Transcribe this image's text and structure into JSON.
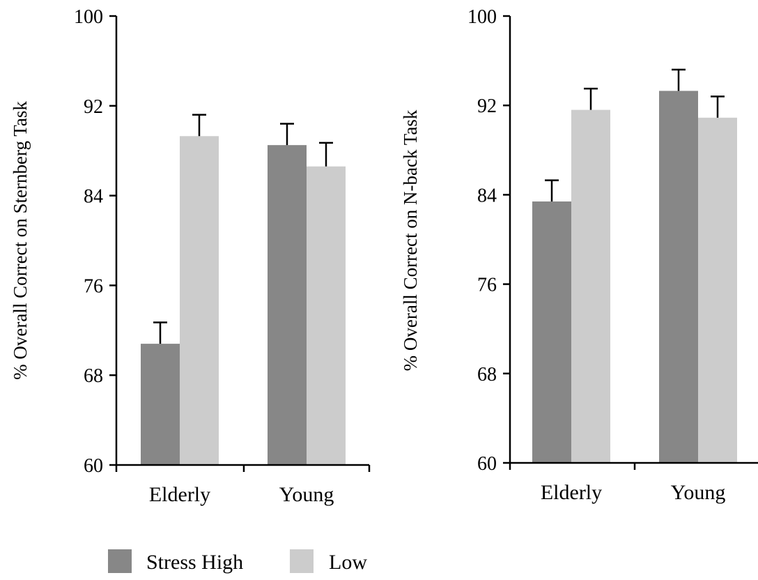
{
  "chart_data": [
    {
      "type": "bar",
      "ylabel": "% Overall Correct on Sternberg Task",
      "xlabel": "",
      "categories": [
        "Elderly",
        "Young"
      ],
      "series": [
        {
          "name": "Stress High",
          "values": [
            70.8,
            88.5
          ],
          "errors": [
            1.9,
            1.9
          ]
        },
        {
          "name": "Low",
          "values": [
            89.3,
            86.6
          ],
          "errors": [
            1.9,
            2.1
          ]
        }
      ],
      "ylim": [
        60,
        100
      ],
      "yticks": [
        "60",
        "68",
        "76",
        "84",
        "92",
        "100"
      ]
    },
    {
      "type": "bar",
      "ylabel": "% Overall Correct on N-back Task",
      "xlabel": "",
      "categories": [
        "Elderly",
        "Young"
      ],
      "series": [
        {
          "name": "Stress High",
          "values": [
            83.4,
            93.3
          ],
          "errors": [
            1.9,
            1.9
          ]
        },
        {
          "name": "Low",
          "values": [
            91.6,
            90.9
          ],
          "errors": [
            1.9,
            1.9
          ]
        }
      ],
      "ylim": [
        60,
        100
      ],
      "yticks": [
        "60",
        "68",
        "76",
        "84",
        "92",
        "100"
      ]
    }
  ],
  "legend": {
    "placement": "bottom",
    "items": [
      {
        "label": "Stress High",
        "color": "#878787"
      },
      {
        "label": "Low",
        "color": "#cccccc"
      }
    ]
  },
  "colors": {
    "high": "#878787",
    "low": "#cccccc",
    "axis": "#000000"
  }
}
